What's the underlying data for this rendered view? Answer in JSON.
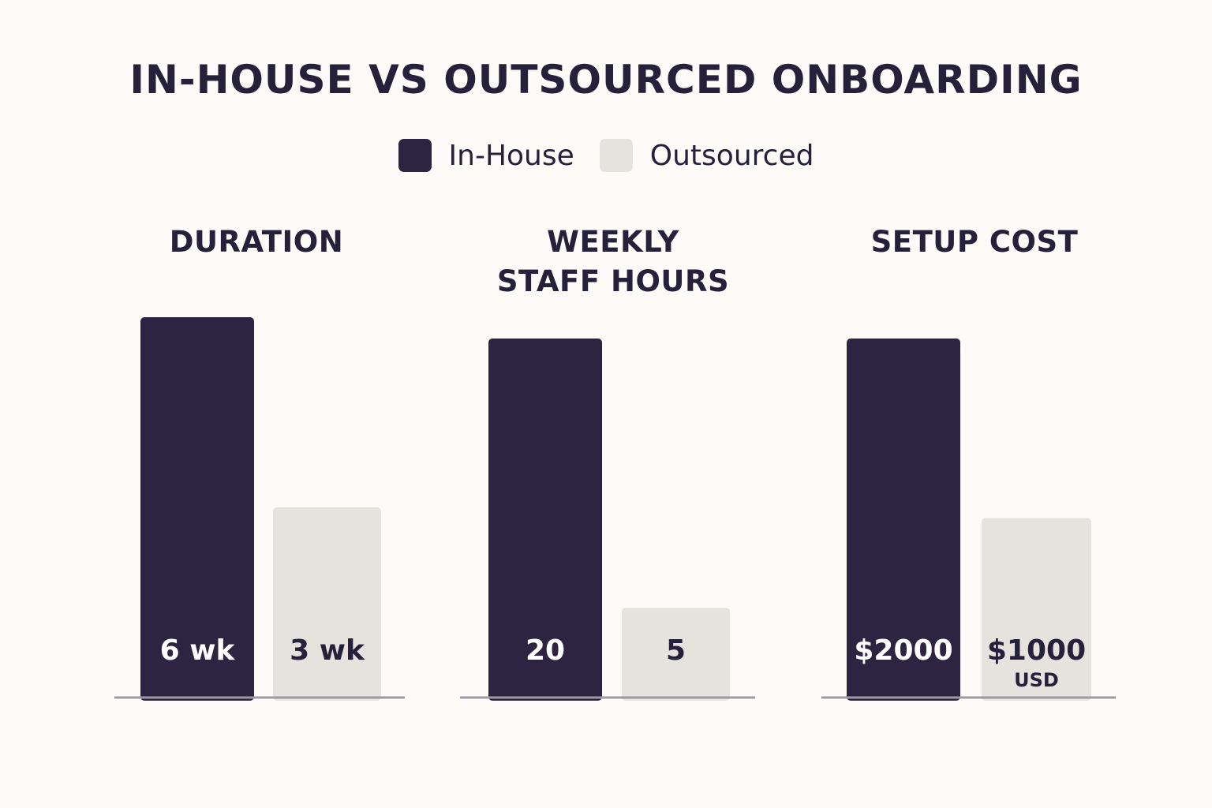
{
  "chart_data": {
    "type": "bar",
    "title": "IN-HOUSE VS OUTSOURCED ONBOARDING",
    "legend": {
      "position": "top-center",
      "entries": [
        {
          "name": "In-House",
          "color": "#2c2440"
        },
        {
          "name": "Outsourced",
          "color": "#e6e3df"
        }
      ]
    },
    "series_colors": {
      "in_house": "#2c2440",
      "outsourced": "#e6e3df"
    },
    "label_colors": {
      "in_house": "#ffffff",
      "outsourced": "#25213a"
    },
    "grid": false,
    "panels": [
      {
        "title": "DURATION",
        "categories": [
          "In-House",
          "Outsourced"
        ],
        "values": [
          6,
          3
        ],
        "labels": [
          "6 wk",
          "3 wk"
        ],
        "sublabels": [
          "",
          ""
        ]
      },
      {
        "title": "WEEKLY STAFF HOURS",
        "categories": [
          "In-House",
          "Outsourced"
        ],
        "values": [
          20,
          5
        ],
        "labels": [
          "20",
          "5"
        ],
        "sublabels": [
          "",
          ""
        ]
      },
      {
        "title": "SETUP COST",
        "categories": [
          "In-House",
          "Outsourced"
        ],
        "values": [
          2000,
          1000
        ],
        "labels": [
          "$2000",
          "$1000"
        ],
        "sublabels": [
          "",
          "USD"
        ]
      }
    ]
  }
}
